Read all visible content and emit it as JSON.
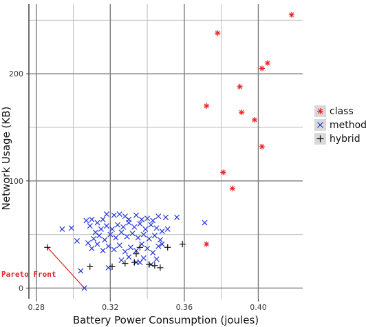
{
  "chart_data": {
    "type": "scatter",
    "title": "",
    "xlabel": "Battery Power Consumption (joules)",
    "ylabel": "Network Usage (KB)",
    "xlim": [
      0.276,
      0.424
    ],
    "ylim": [
      -10,
      265
    ],
    "x_ticks": [
      0.28,
      0.32,
      0.36,
      0.4
    ],
    "x_tick_labels": [
      "0.28",
      "0.32",
      "0.36",
      "0.40"
    ],
    "y_ticks": [
      0,
      100,
      200
    ],
    "y_tick_labels": [
      "0",
      "100",
      "200"
    ],
    "grid": true,
    "legend_position": "right",
    "series": [
      {
        "name": "class",
        "marker": "asterisk",
        "color": "#ee2222",
        "points": [
          [
            0.418,
            255
          ],
          [
            0.378,
            238
          ],
          [
            0.405,
            210
          ],
          [
            0.402,
            205
          ],
          [
            0.39,
            188
          ],
          [
            0.372,
            170
          ],
          [
            0.391,
            164
          ],
          [
            0.398,
            157
          ],
          [
            0.402,
            132
          ],
          [
            0.381,
            108
          ],
          [
            0.386,
            93
          ],
          [
            0.372,
            41
          ]
        ]
      },
      {
        "name": "method",
        "marker": "x",
        "color": "#2233dd",
        "points": [
          [
            0.294,
            55
          ],
          [
            0.299,
            56
          ],
          [
            0.302,
            44
          ],
          [
            0.304,
            16
          ],
          [
            0.306,
            0
          ],
          [
            0.307,
            63
          ],
          [
            0.31,
            64
          ],
          [
            0.313,
            61
          ],
          [
            0.316,
            64
          ],
          [
            0.318,
            69
          ],
          [
            0.322,
            68
          ],
          [
            0.325,
            69
          ],
          [
            0.328,
            67
          ],
          [
            0.33,
            64
          ],
          [
            0.334,
            68
          ],
          [
            0.337,
            64
          ],
          [
            0.34,
            65
          ],
          [
            0.343,
            63
          ],
          [
            0.346,
            67
          ],
          [
            0.35,
            66
          ],
          [
            0.356,
            66
          ],
          [
            0.309,
            58
          ],
          [
            0.312,
            52
          ],
          [
            0.315,
            55
          ],
          [
            0.318,
            58
          ],
          [
            0.321,
            55
          ],
          [
            0.324,
            59
          ],
          [
            0.327,
            57
          ],
          [
            0.33,
            61
          ],
          [
            0.333,
            57
          ],
          [
            0.336,
            60
          ],
          [
            0.339,
            55
          ],
          [
            0.342,
            59
          ],
          [
            0.345,
            56
          ],
          [
            0.348,
            53
          ],
          [
            0.351,
            55
          ],
          [
            0.308,
            42
          ],
          [
            0.311,
            46
          ],
          [
            0.314,
            49
          ],
          [
            0.317,
            45
          ],
          [
            0.32,
            50
          ],
          [
            0.323,
            47
          ],
          [
            0.326,
            52
          ],
          [
            0.329,
            48
          ],
          [
            0.332,
            51
          ],
          [
            0.335,
            47
          ],
          [
            0.338,
            50
          ],
          [
            0.341,
            46
          ],
          [
            0.344,
            49
          ],
          [
            0.347,
            45
          ],
          [
            0.31,
            37
          ],
          [
            0.313,
            41
          ],
          [
            0.316,
            35
          ],
          [
            0.319,
            39
          ],
          [
            0.322,
            36
          ],
          [
            0.325,
            40
          ],
          [
            0.328,
            34
          ],
          [
            0.331,
            38
          ],
          [
            0.334,
            35
          ],
          [
            0.337,
            41
          ],
          [
            0.34,
            37
          ],
          [
            0.343,
            33
          ],
          [
            0.346,
            39
          ],
          [
            0.326,
            26
          ],
          [
            0.33,
            29
          ],
          [
            0.334,
            24
          ],
          [
            0.338,
            28
          ],
          [
            0.342,
            22
          ],
          [
            0.345,
            27
          ],
          [
            0.319,
            19
          ],
          [
            0.336,
            24
          ],
          [
            0.348,
            41
          ],
          [
            0.371,
            61
          ]
        ]
      },
      {
        "name": "hybrid",
        "marker": "plus",
        "color": "#111111",
        "points": [
          [
            0.286,
            38
          ],
          [
            0.309,
            20
          ],
          [
            0.321,
            20
          ],
          [
            0.328,
            23
          ],
          [
            0.333,
            24
          ],
          [
            0.334,
            32
          ],
          [
            0.336,
            38
          ],
          [
            0.344,
            21
          ],
          [
            0.341,
            22
          ],
          [
            0.347,
            19
          ],
          [
            0.351,
            38
          ],
          [
            0.359,
            41
          ]
        ]
      }
    ],
    "pareto_front": {
      "label": "Pareto Front",
      "color": "#e02020",
      "line": [
        [
          0.286,
          38
        ],
        [
          0.306,
          0
        ]
      ]
    }
  },
  "legend": {
    "items": [
      {
        "label": "class",
        "marker": "asterisk",
        "color": "#ee2222"
      },
      {
        "label": "method",
        "marker": "x",
        "color": "#2233dd"
      },
      {
        "label": "hybrid",
        "marker": "plus",
        "color": "#111111"
      }
    ]
  }
}
